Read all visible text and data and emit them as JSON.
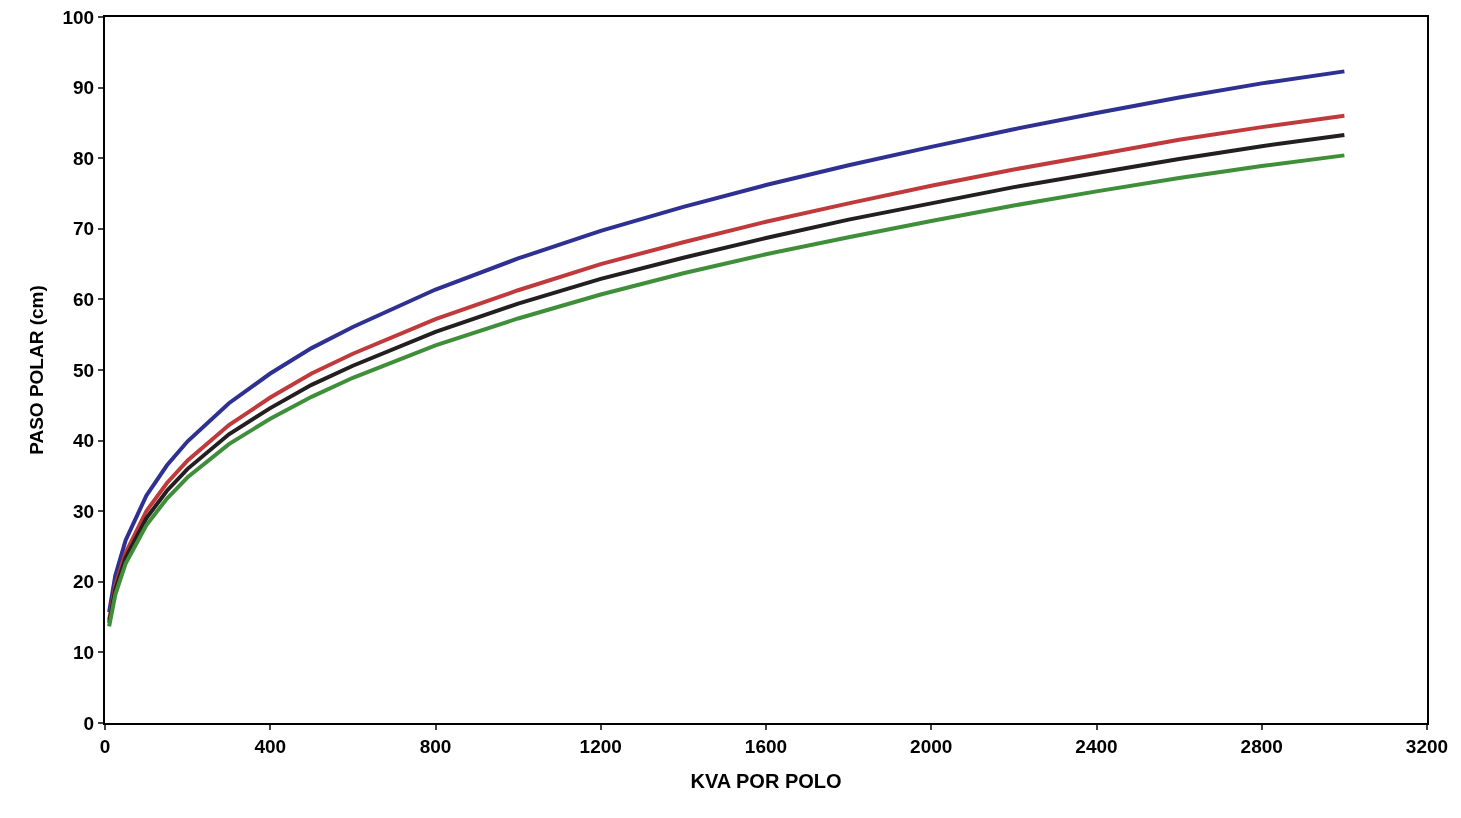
{
  "chart_data": {
    "type": "line",
    "xlabel": "KVA POR POLO",
    "ylabel": "PASO POLAR (cm)",
    "x": [
      10,
      25,
      50,
      100,
      150,
      200,
      300,
      400,
      500,
      600,
      800,
      1000,
      1200,
      1400,
      1600,
      1800,
      2000,
      2200,
      2400,
      2600,
      2800,
      3000
    ],
    "series": [
      {
        "color": "#2e3192",
        "values": [
          15.7,
          20.9,
          25.9,
          32.2,
          36.5,
          39.9,
          45.3,
          49.5,
          53.1,
          56.1,
          61.4,
          65.8,
          69.7,
          73.1,
          76.2,
          79.0,
          81.6,
          84.1,
          86.4,
          88.6,
          90.6,
          92.3
        ]
      },
      {
        "color": "#c0393b",
        "values": [
          14.6,
          19.5,
          24.1,
          30.0,
          34.0,
          37.2,
          42.2,
          46.1,
          49.5,
          52.3,
          57.2,
          61.3,
          65.0,
          68.1,
          71.0,
          73.6,
          76.1,
          78.4,
          80.5,
          82.6,
          84.4,
          86.0
        ]
      },
      {
        "color": "#231f20",
        "values": [
          14.2,
          18.9,
          23.4,
          29.0,
          32.9,
          36.0,
          40.9,
          44.6,
          47.9,
          50.6,
          55.4,
          59.4,
          62.9,
          65.9,
          68.7,
          71.3,
          73.6,
          75.9,
          77.9,
          79.9,
          81.7,
          83.3
        ]
      },
      {
        "color": "#3f8f3a",
        "values": [
          13.7,
          18.2,
          22.6,
          28.0,
          31.8,
          34.8,
          39.5,
          43.1,
          46.2,
          48.9,
          53.5,
          57.3,
          60.7,
          63.7,
          66.4,
          68.8,
          71.1,
          73.3,
          75.3,
          77.2,
          78.9,
          80.4
        ]
      }
    ],
    "xlim": [
      0,
      3200
    ],
    "xticks": [
      0,
      400,
      800,
      1200,
      1600,
      2000,
      2400,
      2800,
      3200
    ],
    "ylim": [
      0,
      100
    ],
    "yticks": [
      0,
      10,
      20,
      30,
      40,
      50,
      60,
      70,
      80,
      90,
      100
    ],
    "grid": false,
    "marker": "none",
    "line_style": "solid"
  }
}
